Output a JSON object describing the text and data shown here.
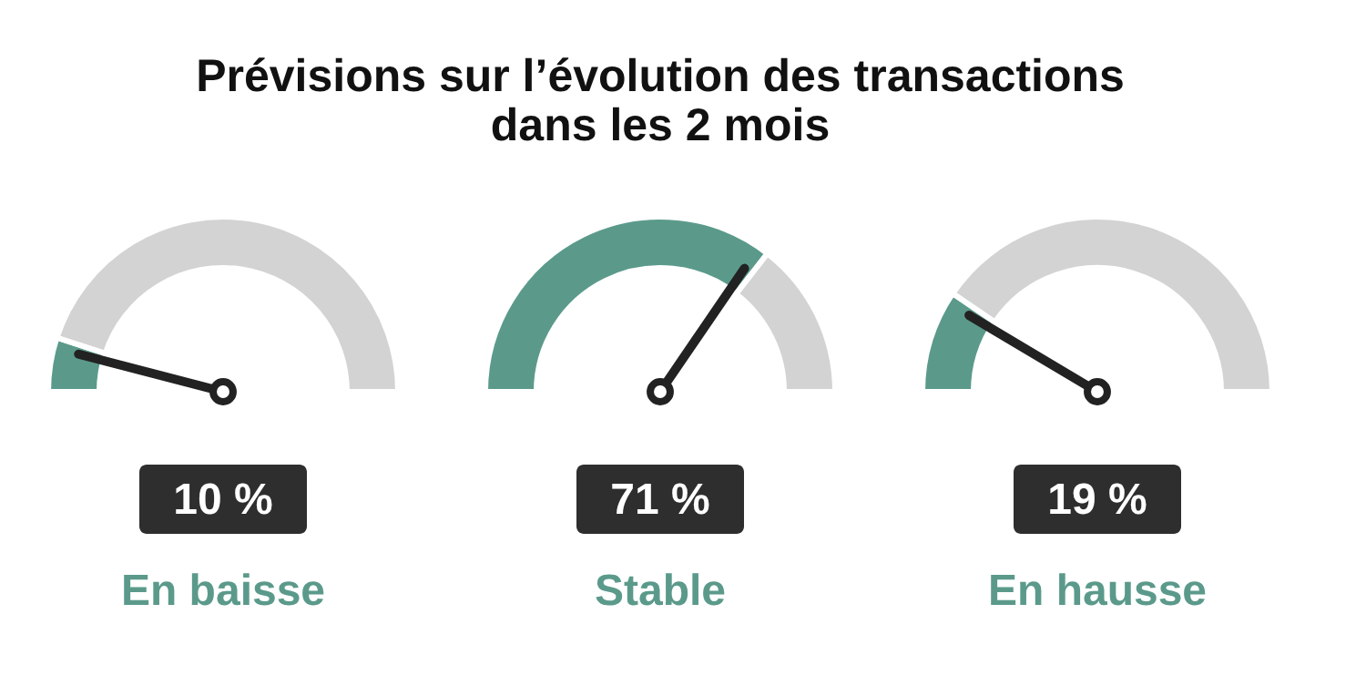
{
  "chart_data": [
    {
      "type": "donut",
      "title": "Prévisions sur l’évolution des transactions dans les 2 mois",
      "xlabel": "En baisse",
      "categories": [
        null,
        null
      ],
      "values": [
        10,
        90
      ],
      "colors": [
        "#5b9a8b",
        "#d3d3d3"
      ],
      "annotations": [
        "10 %"
      ]
    },
    {
      "type": "donut",
      "xlabel": "Stable",
      "categories": [
        null,
        null
      ],
      "values": [
        71,
        29
      ],
      "colors": [
        "#5b9a8b",
        "#d3d3d3"
      ],
      "annotations": [
        "71 %"
      ]
    },
    {
      "type": "donut",
      "xlabel": "En hausse",
      "categories": [
        null,
        null
      ],
      "values": [
        19,
        81
      ],
      "colors": [
        "#5b9a8b",
        "#d3d3d3"
      ],
      "annotations": [
        "19 %"
      ]
    }
  ]
}
